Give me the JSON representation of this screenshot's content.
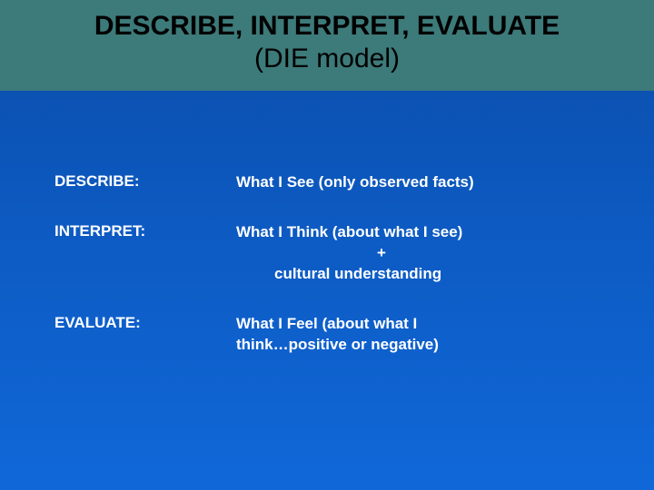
{
  "title": {
    "line1": "DESCRIBE, INTERPRET, EVALUATE",
    "line2": "(DIE model)",
    "band_color": "#3d7a7a",
    "text_color": "#000000",
    "fontsize": 30
  },
  "background": {
    "gradient_top": "#0a4da8",
    "gradient_mid": "#0d5bc4",
    "gradient_bottom": "#1068d8"
  },
  "text_color": "#ffffff",
  "body_fontsize": 17,
  "rows": [
    {
      "label": "DESCRIBE:",
      "desc_line1": "What I See (only observed facts)"
    },
    {
      "label": "INTERPRET:",
      "desc_line1": "What I Think (about what I see)",
      "desc_line2": "+",
      "desc_line3": "cultural understanding"
    },
    {
      "label": "EVALUATE:",
      "desc_line1": "What I Feel (about what I",
      "desc_line1b": "think…positive or negative)"
    }
  ]
}
